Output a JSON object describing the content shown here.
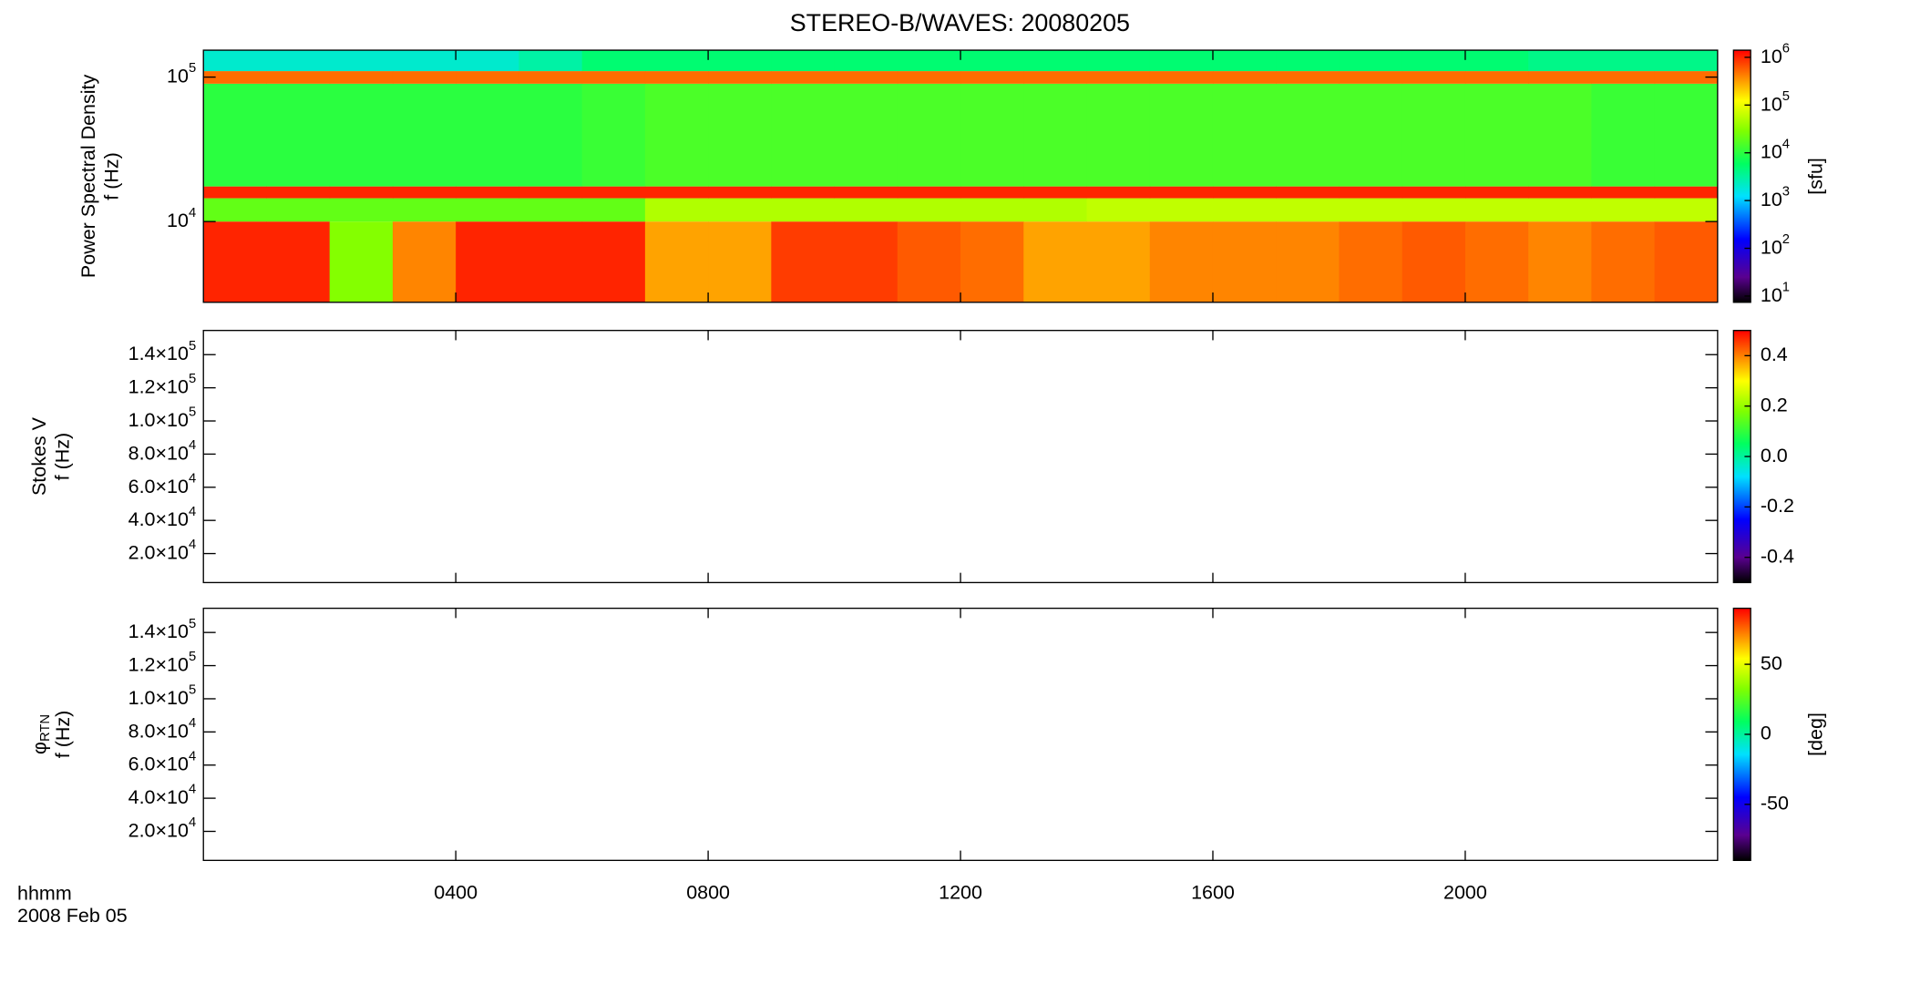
{
  "chart_data": [
    {
      "type": "heatmap",
      "title": "STEREO-B/WAVES: 20080205",
      "ylabel": [
        "Power Spectral Density",
        "f (Hz)"
      ],
      "xlim": [
        0,
        24
      ],
      "log_y": true,
      "ylim": [
        2760,
        153600
      ],
      "yticks": [
        {
          "value": 10000,
          "label": "10",
          "power": "4"
        },
        {
          "value": 100000,
          "label": "10",
          "power": "5"
        }
      ],
      "x_bins": [
        0,
        1,
        2,
        3,
        4,
        5,
        6,
        7,
        8,
        9,
        10,
        11,
        12,
        13,
        14,
        15,
        16,
        17,
        18,
        19,
        20,
        21,
        22,
        23,
        24
      ],
      "y_bins": [
        2760,
        10000,
        14500,
        17500,
        90000,
        110000,
        153600
      ],
      "values": [
        [
          1000000,
          1000000,
          30000,
          400000,
          1000000,
          1000000,
          1000000,
          300000,
          300000,
          800000,
          800000,
          600000,
          500000,
          300000,
          300000,
          400000,
          400000,
          400000,
          500000,
          600000,
          500000,
          400000,
          500000,
          600000
        ],
        [
          20000,
          20000,
          20000,
          20000,
          20000,
          20000,
          20000,
          50000,
          50000,
          50000,
          50000,
          50000,
          50000,
          50000,
          60000,
          60000,
          60000,
          60000,
          60000,
          60000,
          60000,
          60000,
          60000,
          60000
        ],
        [
          1000000,
          1000000,
          1000000,
          1000000,
          1000000,
          1000000,
          1000000,
          1000000,
          1000000,
          1000000,
          1000000,
          1000000,
          1000000,
          1000000,
          1000000,
          1000000,
          1000000,
          1000000,
          1000000,
          1000000,
          1000000,
          1000000,
          1000000,
          1000000
        ],
        [
          10000,
          10000,
          10000,
          10000,
          10000,
          10000,
          12000,
          15000,
          15000,
          15000,
          15000,
          15000,
          15000,
          15000,
          15000,
          15000,
          15000,
          15000,
          15000,
          15000,
          15000,
          15000,
          12000,
          12000
        ],
        [
          500000,
          500000,
          500000,
          500000,
          500000,
          500000,
          500000,
          500000,
          500000,
          500000,
          500000,
          500000,
          500000,
          500000,
          500000,
          500000,
          500000,
          500000,
          500000,
          500000,
          500000,
          500000,
          500000,
          500000
        ],
        [
          2000,
          2000,
          2000,
          2000,
          2000,
          3000,
          5000,
          5000,
          5000,
          5000,
          5000,
          5000,
          5000,
          5000,
          5000,
          5000,
          5000,
          5000,
          5000,
          5000,
          5000,
          4000,
          4000,
          4000
        ]
      ],
      "colorbar": {
        "label": "[sfu]",
        "log": true,
        "lim": [
          7.4,
          1410000
        ],
        "ticks": [
          {
            "value": 10,
            "label": "10",
            "power": "1"
          },
          {
            "value": 100,
            "label": "10",
            "power": "2"
          },
          {
            "value": 1000,
            "label": "10",
            "power": "3"
          },
          {
            "value": 10000,
            "label": "10",
            "power": "4"
          },
          {
            "value": 100000,
            "label": "10",
            "power": "5"
          },
          {
            "value": 1000000,
            "label": "10",
            "power": "6"
          }
        ]
      }
    },
    {
      "type": "heatmap",
      "ylabel": [
        "Stokes V",
        "f (Hz)"
      ],
      "xlim": [
        0,
        24
      ],
      "ylim": [
        2500,
        154600
      ],
      "yticks": [
        {
          "value": 20000,
          "label": "2.0×10",
          "power": "4"
        },
        {
          "value": 40000,
          "label": "4.0×10",
          "power": "4"
        },
        {
          "value": 60000,
          "label": "6.0×10",
          "power": "4"
        },
        {
          "value": 80000,
          "label": "8.0×10",
          "power": "4"
        },
        {
          "value": 100000,
          "label": "1.0×10",
          "power": "5"
        },
        {
          "value": 120000,
          "label": "1.2×10",
          "power": "5"
        },
        {
          "value": 140000,
          "label": "1.4×10",
          "power": "5"
        }
      ],
      "colorbar": {
        "lim": [
          -0.5,
          0.5
        ],
        "ticks": [
          0.4,
          0.2,
          {
            "value": 0,
            "label": "0.0"
          },
          -0.2,
          -0.4
        ]
      }
    },
    {
      "type": "heatmap",
      "ylabel": [
        {
          "text": "φ",
          "sub": "RTN"
        },
        "f (Hz)"
      ],
      "xlim": [
        0,
        24
      ],
      "ylim": [
        2500,
        154600
      ],
      "yticks": [
        {
          "value": 20000,
          "label": "2.0×10",
          "power": "4"
        },
        {
          "value": 40000,
          "label": "4.0×10",
          "power": "4"
        },
        {
          "value": 60000,
          "label": "6.0×10",
          "power": "4"
        },
        {
          "value": 80000,
          "label": "8.0×10",
          "power": "4"
        },
        {
          "value": 100000,
          "label": "1.0×10",
          "power": "5"
        },
        {
          "value": 120000,
          "label": "1.2×10",
          "power": "5"
        },
        {
          "value": 140000,
          "label": "1.4×10",
          "power": "5"
        }
      ],
      "colorbar": {
        "label": "[deg]",
        "lim": [
          -90,
          90
        ],
        "ticks": [
          50,
          0,
          -50
        ]
      },
      "xticks": [
        {
          "value": 4,
          "label": "0400"
        },
        {
          "value": 8,
          "label": "0800"
        },
        {
          "value": 12,
          "label": "1200"
        },
        {
          "value": 16,
          "label": "1600"
        },
        {
          "value": 20,
          "label": "2000"
        }
      ],
      "xlabel": [
        "hhmm",
        "2008 Feb 05"
      ]
    }
  ]
}
